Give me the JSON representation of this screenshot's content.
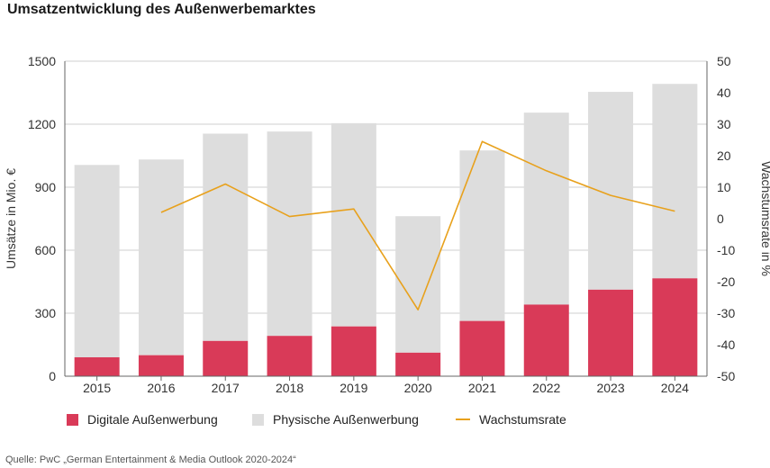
{
  "title": "Umsatzentwicklung des Außenwerbemarktes",
  "source": "Quelle: PwC „German Entertainment & Media Outlook 2020-2024“",
  "colors": {
    "digital": "#d93a58",
    "physical": "#dddddd",
    "growth": "#e8a11c",
    "axis": "#666666"
  },
  "chart_data": {
    "type": "bar",
    "stacked": true,
    "categories": [
      "2015",
      "2016",
      "2017",
      "2018",
      "2019",
      "2020",
      "2021",
      "2022",
      "2023",
      "2024"
    ],
    "series": [
      {
        "name": "Digitale Außenwerbung",
        "axis": "left",
        "type": "bar",
        "values": [
          90,
          100,
          168,
          192,
          237,
          112,
          263,
          341,
          412,
          466
        ]
      },
      {
        "name": "Physische Außenwerbung",
        "axis": "left",
        "type": "bar",
        "values": [
          916,
          932,
          987,
          973,
          968,
          650,
          812,
          914,
          942,
          926
        ]
      },
      {
        "name": "Wachstumsrate",
        "axis": "right",
        "type": "line",
        "values": [
          null,
          2.0,
          11.0,
          0.7,
          3.1,
          -28.9,
          24.5,
          15.2,
          7.4,
          2.4
        ]
      }
    ],
    "ylabel": "Umsätze in Mio. €",
    "ylim": [
      0,
      1500
    ],
    "yticks": [
      0,
      300,
      600,
      900,
      1200,
      1500
    ],
    "y2label": "Wachstumsrate in %",
    "y2lim": [
      -50,
      50
    ],
    "y2ticks": [
      -50,
      -40,
      -30,
      -20,
      -10,
      0,
      10,
      20,
      30,
      40,
      50
    ],
    "grid": true,
    "legend_position": "bottom-left"
  }
}
